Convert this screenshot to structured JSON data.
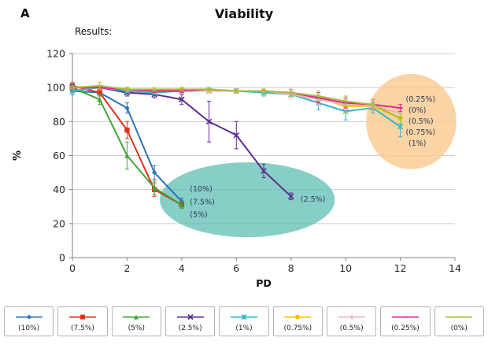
{
  "panel_label": "A",
  "title": "Viability",
  "subtitle": "Results:",
  "chart_data": {
    "type": "line",
    "title": "Viability",
    "xlabel": "PD",
    "ylabel": "%",
    "xlim": [
      0,
      14
    ],
    "ylim": [
      0,
      120
    ],
    "xticks": [
      0,
      2,
      4,
      6,
      8,
      10,
      12,
      14
    ],
    "yticks": [
      0,
      20,
      40,
      60,
      80,
      100,
      120
    ],
    "grid": "horizontal",
    "legend_position": "bottom",
    "annotation_color": "#2f3b52",
    "series": [
      {
        "name": "(10%)",
        "color": "#2e75b6",
        "marker": "diamond",
        "x": [
          0,
          1,
          2,
          3,
          4
        ],
        "y": [
          98,
          97,
          88,
          50,
          33
        ],
        "err": [
          2,
          2,
          3,
          4,
          2
        ]
      },
      {
        "name": "(7.5%)",
        "color": "#e0301e",
        "marker": "square",
        "x": [
          0,
          1,
          2,
          3,
          4
        ],
        "y": [
          101,
          97,
          75,
          40,
          31
        ],
        "err": [
          2,
          2,
          5,
          4,
          2
        ]
      },
      {
        "name": "(5%)",
        "color": "#44a436",
        "marker": "triangle",
        "x": [
          0,
          1,
          2,
          3,
          4
        ],
        "y": [
          100,
          93,
          60,
          41,
          31
        ],
        "err": [
          2,
          3,
          8,
          4,
          2
        ]
      },
      {
        "name": "(2.5%)",
        "color": "#5c2d91",
        "marker": "x",
        "x": [
          0,
          1,
          2,
          3,
          4,
          5,
          6,
          7,
          8
        ],
        "y": [
          100,
          100,
          97,
          96,
          93,
          80,
          72,
          51,
          36
        ],
        "err": [
          2,
          1,
          2,
          2,
          3,
          12,
          8,
          4,
          2
        ]
      },
      {
        "name": "(1%)",
        "color": "#33b5c9",
        "marker": "star",
        "x": [
          0,
          1,
          2,
          3,
          4,
          5,
          6,
          7,
          8,
          9,
          10,
          11,
          12
        ],
        "y": [
          98,
          100,
          98,
          97,
          98,
          98,
          98,
          97,
          96,
          91,
          86,
          88,
          77
        ],
        "err": [
          2,
          1,
          1,
          1,
          1,
          1,
          1,
          2,
          2,
          4,
          5,
          3,
          6
        ]
      },
      {
        "name": "(0.75%)",
        "color": "#f6c100",
        "marker": "circle",
        "x": [
          0,
          1,
          2,
          3,
          4,
          5,
          6,
          7,
          8,
          9,
          10,
          11,
          12
        ],
        "y": [
          100,
          100,
          99,
          98,
          99,
          98,
          98,
          98,
          96,
          94,
          89,
          89,
          82
        ],
        "err": [
          1,
          1,
          1,
          1,
          1,
          1,
          1,
          1,
          2,
          3,
          4,
          3,
          3
        ]
      },
      {
        "name": "(0.5%)",
        "color": "#ecb3c0",
        "marker": "plus",
        "x": [
          0,
          1,
          2,
          3,
          4,
          5,
          6,
          7,
          8,
          9,
          10,
          11,
          12
        ],
        "y": [
          100,
          100,
          99,
          98,
          98,
          98,
          98,
          98,
          96,
          93,
          90,
          89,
          85
        ],
        "err": [
          1,
          1,
          1,
          1,
          1,
          1,
          1,
          1,
          2,
          3,
          3,
          3,
          3
        ]
      },
      {
        "name": "(0.25%)",
        "color": "#e32490",
        "marker": "dash",
        "x": [
          0,
          1,
          2,
          3,
          4,
          5,
          6,
          7,
          8,
          9,
          10,
          11,
          12
        ],
        "y": [
          100,
          100,
          99,
          98,
          98,
          99,
          98,
          98,
          97,
          94,
          91,
          90,
          88
        ],
        "err": [
          1,
          1,
          1,
          1,
          1,
          1,
          1,
          1,
          2,
          3,
          3,
          3,
          2
        ]
      },
      {
        "name": "(0%)",
        "color": "#a3c13c",
        "marker": "dash",
        "x": [
          0,
          1,
          2,
          3,
          4,
          5,
          6,
          7,
          8,
          9,
          10,
          11,
          12
        ],
        "y": [
          100,
          101,
          99,
          99,
          99,
          99,
          98,
          98,
          97,
          95,
          92,
          90,
          82
        ],
        "err": [
          1,
          2,
          1,
          1,
          1,
          1,
          1,
          1,
          2,
          3,
          3,
          3,
          3
        ]
      }
    ],
    "annotations": [
      {
        "text": "(10%)",
        "x": 4.3,
        "y": 40
      },
      {
        "text": "(7.5%)",
        "x": 4.3,
        "y": 32.5
      },
      {
        "text": "(5%)",
        "x": 4.3,
        "y": 25
      },
      {
        "text": "(2.5%)",
        "x": 8.35,
        "y": 34
      },
      {
        "text": "(0.25%)",
        "x": 12.2,
        "y": 93
      },
      {
        "text": "(0%)",
        "x": 12.3,
        "y": 86.5
      },
      {
        "text": "(0.5%)",
        "x": 12.3,
        "y": 80
      },
      {
        "text": "(0.75%)",
        "x": 12.2,
        "y": 73.5
      },
      {
        "text": "(1%)",
        "x": 12.3,
        "y": 67
      }
    ],
    "highlights": [
      {
        "shape": "ellipse",
        "cx": 6.4,
        "cy": 34,
        "rx": 3.2,
        "ry": 22,
        "color": "#5fbdb4",
        "opacity": 0.75
      },
      {
        "shape": "ellipse",
        "cx": 12.4,
        "cy": 80,
        "rx": 1.65,
        "ry": 28,
        "color": "#f9c98e",
        "opacity": 0.8
      }
    ]
  }
}
